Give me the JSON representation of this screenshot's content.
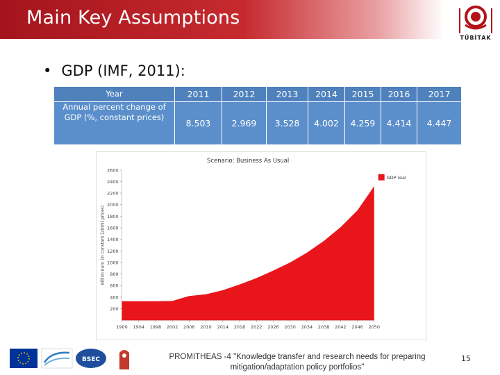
{
  "slide": {
    "title": "Main Key Assumptions",
    "logo_text": "TÜBİTAK",
    "bullet": "GDP (IMF, 2011):",
    "footer": "PROMITHEAS -4 \"Knowledge transfer and research needs for preparing mitigation/adaptation policy portfolios\"",
    "page_number": "15"
  },
  "table": {
    "row_label_1": "Year",
    "row_label_2": "Annual percent change of GDP (%, constant prices)",
    "years": [
      "2011",
      "2012",
      "2013",
      "2014",
      "2015",
      "2016",
      "2017"
    ],
    "values": [
      "8.503",
      "2.969",
      "3.528",
      "4.002",
      "4.259",
      "4.414",
      "4.447"
    ]
  },
  "chart_data": {
    "type": "area",
    "title": "Scenario: Business As Usual",
    "xlabel": "",
    "ylabel": "Billion Euro (in constant [2005] prices)",
    "legend": "GDP real",
    "legend_position": "top-right",
    "color": "#e8161b",
    "xlim": [
      1900,
      2050
    ],
    "ylim": [
      0,
      2600
    ],
    "x_ticks": [
      1900,
      1904,
      1998,
      2002,
      2006,
      2010,
      2014,
      2018,
      2022,
      2026,
      2030,
      2034,
      2038,
      2042,
      2046,
      2050
    ],
    "y_ticks": [
      200,
      400,
      600,
      800,
      1000,
      1200,
      1400,
      1600,
      1800,
      2000,
      2200,
      2400,
      2600
    ],
    "x": [
      1900,
      1998,
      2002,
      2006,
      2010,
      2014,
      2018,
      2022,
      2026,
      2030,
      2034,
      2038,
      2042,
      2046,
      2050
    ],
    "values": [
      330,
      330,
      335,
      420,
      450,
      520,
      620,
      730,
      860,
      1000,
      1170,
      1370,
      1610,
      1900,
      2320
    ]
  }
}
